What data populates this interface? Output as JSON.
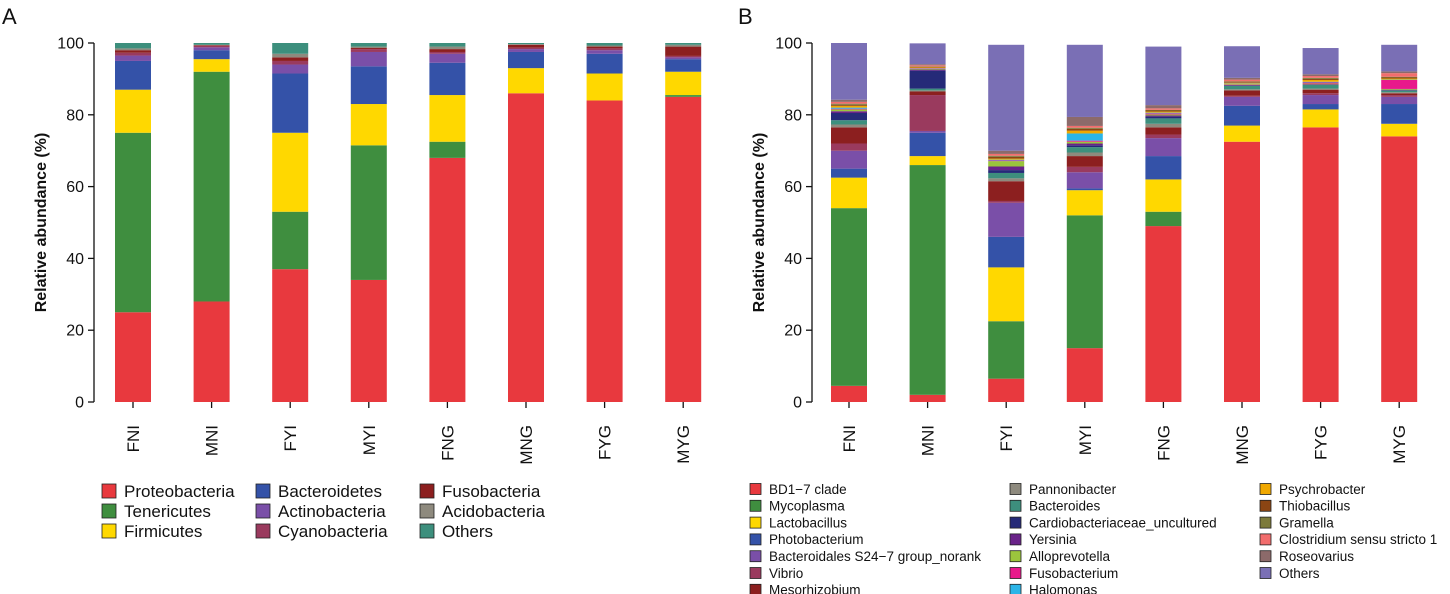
{
  "chart_data": [
    {
      "type": "bar",
      "stacked": true,
      "panel_label": "A",
      "title": "",
      "xlabel": "",
      "ylabel": "Relative abundance (%)",
      "ylim": [
        0,
        100
      ],
      "yticks": [
        "0",
        "20",
        "40",
        "60",
        "80",
        "100"
      ],
      "categories": [
        "FNI",
        "MNI",
        "FYI",
        "MYI",
        "FNG",
        "MNG",
        "FYG",
        "MYG"
      ],
      "legend_position": "bottom",
      "series": [
        {
          "name": "Proteobacteria",
          "color": "#E8393E",
          "values": [
            25,
            28,
            37,
            34,
            68,
            86,
            84,
            85
          ]
        },
        {
          "name": "Tenericutes",
          "color": "#3F8E3F",
          "values": [
            50,
            64,
            16,
            37.5,
            4.5,
            0,
            0,
            0.5
          ]
        },
        {
          "name": "Firmicutes",
          "color": "#FFD800",
          "values": [
            12,
            3.5,
            22,
            11.5,
            13,
            7,
            7.5,
            6.5
          ]
        },
        {
          "name": "Bacteroidetes",
          "color": "#3452A8",
          "values": [
            8,
            2.5,
            16.5,
            10.5,
            9,
            4.5,
            5.5,
            3.5
          ]
        },
        {
          "name": "Actinobacteria",
          "color": "#7A4FA8",
          "values": [
            1.5,
            0.8,
            2.5,
            4,
            2.5,
            0.8,
            1,
            0.5
          ]
        },
        {
          "name": "Cyanobacteria",
          "color": "#9A3A5E",
          "values": [
            0.8,
            0.4,
            1,
            0.8,
            0.5,
            0.4,
            0.5,
            0.4
          ]
        },
        {
          "name": "Fusobacteria",
          "color": "#8C1F1F",
          "values": [
            0.7,
            0.2,
            1,
            0.3,
            0.8,
            0.8,
            0.5,
            2.6
          ]
        },
        {
          "name": "Acidobacteria",
          "color": "#8E8A7E",
          "values": [
            0.5,
            0.1,
            1,
            0.4,
            0.7,
            0.2,
            0.3,
            0.5
          ]
        },
        {
          "name": "Others",
          "color": "#3D8F7D",
          "values": [
            1.5,
            0.5,
            3,
            1,
            1,
            0.3,
            0.7,
            0.5
          ]
        }
      ]
    },
    {
      "type": "bar",
      "stacked": true,
      "panel_label": "B",
      "title": "",
      "xlabel": "",
      "ylabel": "Relative abundance (%)",
      "ylim": [
        0,
        100
      ],
      "yticks": [
        "0",
        "20",
        "40",
        "60",
        "80",
        "100"
      ],
      "categories": [
        "FNI",
        "MNI",
        "FYI",
        "MYI",
        "FNG",
        "MNG",
        "FYG",
        "MYG"
      ],
      "legend_position": "bottom",
      "series": [
        {
          "name": "BD1−7 clade",
          "color": "#E8393E",
          "values": [
            4.5,
            2,
            6.5,
            15,
            49,
            72.5,
            76.5,
            74
          ]
        },
        {
          "name": "Mycoplasma",
          "color": "#3F8E3F",
          "values": [
            49.5,
            64,
            16,
            37,
            4,
            0,
            0,
            0
          ]
        },
        {
          "name": "Lactobacillus",
          "color": "#FFD800",
          "values": [
            8.5,
            2.5,
            15,
            7,
            9,
            4.5,
            5,
            3.5
          ]
        },
        {
          "name": "Photobacterium",
          "color": "#3452A8",
          "values": [
            2.5,
            6.5,
            8.5,
            0.5,
            6.5,
            5.5,
            1.5,
            5.5
          ]
        },
        {
          "name": "Bacteroidales S24−7 group_norank",
          "color": "#7A4FA8",
          "values": [
            5,
            0.5,
            9.5,
            4.5,
            5,
            2.5,
            2.5,
            2
          ]
        },
        {
          "name": "Vibrio",
          "color": "#9A3A5E",
          "values": [
            2,
            10,
            0.5,
            1.5,
            1,
            0.3,
            0.5,
            0.5
          ]
        },
        {
          "name": "Mesorhizobium",
          "color": "#8C1F1F",
          "values": [
            4.5,
            1,
            5.5,
            3,
            2,
            1.5,
            1,
            0.5
          ]
        },
        {
          "name": "Pannonibacter",
          "color": "#8E8A7E",
          "values": [
            0.8,
            0.3,
            0.8,
            1,
            1,
            0.3,
            0.3,
            0.3
          ]
        },
        {
          "name": "Bacteroides",
          "color": "#3D8F7D",
          "values": [
            1.2,
            0.5,
            1.5,
            1.5,
            1.5,
            1,
            1,
            0.5
          ]
        },
        {
          "name": "Cardiobacteriaceae_uncultured",
          "color": "#252A78",
          "values": [
            2,
            5,
            0.8,
            0.5,
            0.5,
            0,
            0,
            0
          ]
        },
        {
          "name": "Yersinia",
          "color": "#6A2389",
          "values": [
            0.5,
            0.3,
            1,
            0.5,
            0.3,
            0.2,
            0.2,
            0.2
          ]
        },
        {
          "name": "Alloprevotella",
          "color": "#9BC53D",
          "values": [
            0.5,
            0.2,
            1.5,
            0.5,
            0.3,
            0.2,
            0.2,
            0.2
          ]
        },
        {
          "name": "Fusobacterium",
          "color": "#E8198B",
          "values": [
            0.2,
            0.1,
            0.2,
            0.3,
            0.3,
            0.1,
            0.3,
            2.5
          ]
        },
        {
          "name": "Halomonas",
          "color": "#2BB5E8",
          "values": [
            0.3,
            0.1,
            0.2,
            2,
            0.2,
            0.1,
            0.2,
            0.1
          ]
        },
        {
          "name": "Psychrobacter",
          "color": "#F0A800",
          "values": [
            0.5,
            0.2,
            0.3,
            0.8,
            0.3,
            0.2,
            0.5,
            0.3
          ]
        },
        {
          "name": "Thiobacillus",
          "color": "#8B4513",
          "values": [
            0.3,
            0.2,
            0.5,
            0.5,
            0.3,
            0.2,
            0.3,
            0.3
          ]
        },
        {
          "name": "Gramella",
          "color": "#7C7A3A",
          "values": [
            0.3,
            0.1,
            0.3,
            0.3,
            0.2,
            0.2,
            0.3,
            0.2
          ]
        },
        {
          "name": "Clostridium sensu stricto 1",
          "color": "#F26D6D",
          "values": [
            0.5,
            0.3,
            0.5,
            0.5,
            0.4,
            0.5,
            0.5,
            1
          ]
        },
        {
          "name": "Roseovarius",
          "color": "#8C6A6A",
          "values": [
            0.6,
            0.3,
            0.9,
            2.5,
            0.9,
            0.5,
            0.5,
            0.5
          ]
        },
        {
          "name": "Others",
          "color": "#7A6FB5",
          "values": [
            15.8,
            5.8,
            29.5,
            20.1,
            16.3,
            8.8,
            7.3,
            7.4
          ]
        }
      ]
    }
  ]
}
